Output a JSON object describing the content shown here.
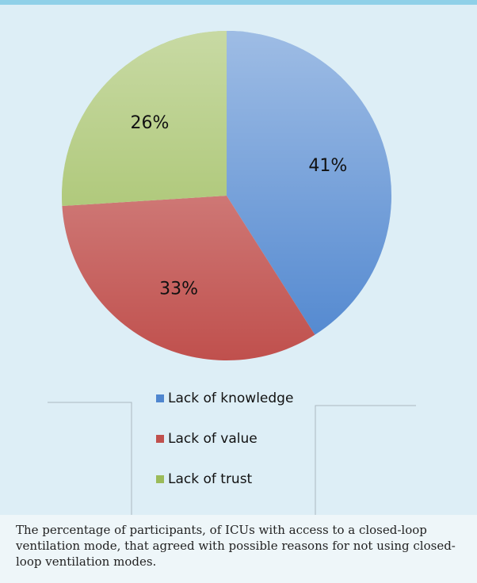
{
  "chart_data": {
    "type": "pie",
    "categories": [
      "Lack of knowledge",
      "Lack of value",
      "Lack of trust"
    ],
    "values": [
      41,
      33,
      26
    ],
    "value_labels": [
      "41%",
      "33%",
      "26%"
    ],
    "colors": [
      "#4f86cf",
      "#c0504d",
      "#9bbb59"
    ],
    "legend": "bottom"
  },
  "caption": "The percentage of participants, of ICUs with access to a closed-loop ventilation mode, that agreed with possible reasons for not using closed-loop ventilation modes."
}
